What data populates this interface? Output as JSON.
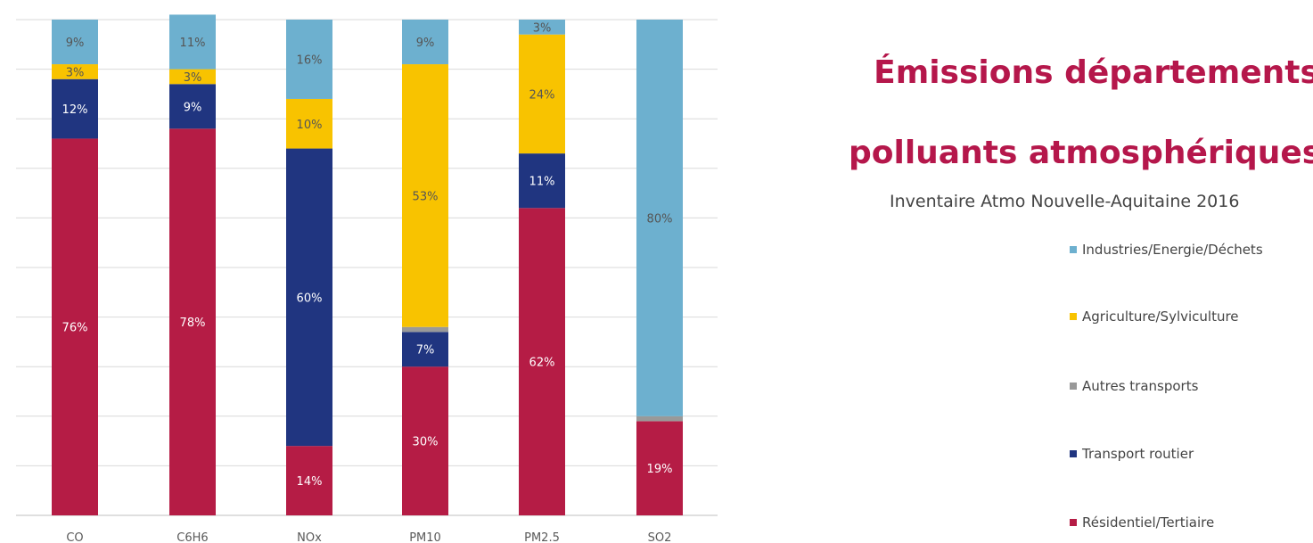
{
  "title_line_1": "Émissions départements",
  "title_line_2": "polluants atmosphériques",
  "subtitle": "Inventaire Atmo Nouvelle-Aquitaine 2016",
  "colors": {
    "Industries/Energie/Déchets": "#6db0cf",
    "Agriculture/Sylviculture": "#f8c300",
    "Autres transports": "#999999",
    "Transport routier": "#203580",
    "Résidentiel/Tertiaire": "#b51c45"
  },
  "chart_data": {
    "type": "bar",
    "stacked": true,
    "categories": [
      "CO",
      "C6H6",
      "NOx",
      "PM10",
      "PM2.5",
      "SO2"
    ],
    "ylim": [
      0,
      100
    ],
    "grid": true,
    "legend_position": "right",
    "series": [
      {
        "name": "Résidentiel/Tertiaire",
        "values": [
          76,
          78,
          14,
          30,
          62,
          19
        ],
        "labels": [
          "76%",
          "78%",
          "14%",
          "30%",
          "62%",
          "19%"
        ]
      },
      {
        "name": "Transport routier",
        "values": [
          12,
          9,
          60,
          7,
          11,
          0
        ],
        "labels": [
          "12%",
          "9%",
          "60%",
          "7%",
          "11%",
          ""
        ]
      },
      {
        "name": "Autres transports",
        "values": [
          0,
          0,
          0,
          1,
          0,
          1
        ],
        "labels": [
          "",
          "",
          "",
          "",
          "",
          ""
        ]
      },
      {
        "name": "Agriculture/Sylviculture",
        "values": [
          3,
          3,
          10,
          53,
          24,
          0
        ],
        "labels": [
          "3%",
          "3%",
          "10%",
          "53%",
          "24%",
          ""
        ]
      },
      {
        "name": "Industries/Energie/Déchets",
        "values": [
          9,
          11,
          16,
          9,
          3,
          80
        ],
        "labels": [
          "9%",
          "11%",
          "16%",
          "9%",
          "3%",
          "80%"
        ]
      }
    ],
    "legend_order": [
      "Industries/Energie/Déchets",
      "Agriculture/Sylviculture",
      "Autres transports",
      "Transport routier",
      "Résidentiel/Tertiaire"
    ]
  }
}
